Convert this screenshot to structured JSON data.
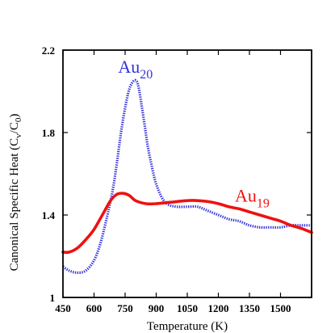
{
  "chart_data": {
    "type": "line",
    "title": "",
    "xlabel": "Temperature (K)",
    "ylabel": "Canonical Specific Heat (C",
    "ylabel_sub_v": "v",
    "ylabel_mid": "/C",
    "ylabel_sub_0": "0",
    "ylabel_end": ")",
    "xlim": [
      450,
      1650
    ],
    "ylim": [
      1.0,
      2.2
    ],
    "xticks": [
      450,
      600,
      750,
      900,
      1050,
      1200,
      1350,
      1500
    ],
    "xtick_labels": [
      "450",
      "600",
      "750",
      "900",
      "1050",
      "1200",
      "1350",
      "1500"
    ],
    "yticks": [
      1.0,
      1.4,
      1.8,
      2.2
    ],
    "ytick_labels": [
      "1",
      "1.4",
      "1.8",
      "2.2"
    ],
    "series": [
      {
        "name_base": "Au",
        "name_sub": "20",
        "color": "#3333dd",
        "style": "dotted",
        "label_at": [
          800,
          2.09
        ],
        "x": [
          450,
          480,
          520,
          560,
          600,
          630,
          660,
          690,
          710,
          730,
          750,
          770,
          790,
          805,
          815,
          830,
          845,
          860,
          880,
          900,
          930,
          960,
          1000,
          1050,
          1100,
          1150,
          1200,
          1250,
          1300,
          1350,
          1400,
          1450,
          1500,
          1550,
          1600,
          1650
        ],
        "y": [
          1.15,
          1.13,
          1.12,
          1.13,
          1.18,
          1.26,
          1.38,
          1.52,
          1.65,
          1.8,
          1.92,
          2.01,
          2.05,
          2.05,
          2.02,
          1.93,
          1.83,
          1.73,
          1.63,
          1.55,
          1.48,
          1.45,
          1.44,
          1.44,
          1.44,
          1.42,
          1.4,
          1.38,
          1.37,
          1.35,
          1.34,
          1.34,
          1.34,
          1.35,
          1.35,
          1.35
        ]
      },
      {
        "name_base": "Au",
        "name_sub": "19",
        "color": "#ee1111",
        "style": "solid",
        "label_at": [
          1280,
          1.465
        ],
        "x": [
          450,
          480,
          520,
          560,
          600,
          640,
          680,
          710,
          740,
          770,
          800,
          850,
          900,
          950,
          1000,
          1050,
          1100,
          1150,
          1200,
          1250,
          1300,
          1350,
          1400,
          1450,
          1500,
          1550,
          1600,
          1650
        ],
        "y": [
          1.22,
          1.22,
          1.24,
          1.28,
          1.33,
          1.4,
          1.47,
          1.5,
          1.505,
          1.495,
          1.47,
          1.455,
          1.455,
          1.46,
          1.465,
          1.47,
          1.47,
          1.465,
          1.455,
          1.44,
          1.43,
          1.415,
          1.4,
          1.385,
          1.37,
          1.35,
          1.335,
          1.315
        ]
      }
    ]
  }
}
